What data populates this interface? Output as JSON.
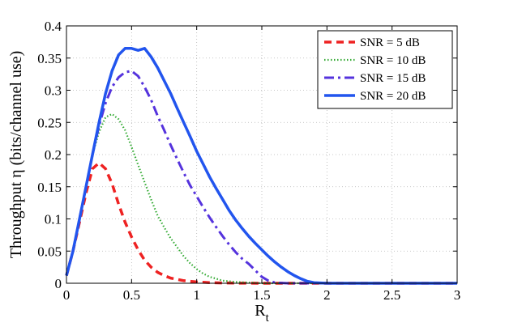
{
  "chart_data": {
    "type": "line",
    "title": "",
    "xlabel": "R",
    "xlabel_subscript": "t",
    "ylabel": "Throughput η (bits/channel use)",
    "xlim": [
      0,
      3
    ],
    "ylim": [
      0,
      0.4
    ],
    "x_ticks": [
      0,
      0.5,
      1,
      1.5,
      2,
      2.5,
      3
    ],
    "x_tick_labels": [
      "0",
      "0.5",
      "1",
      "1.5",
      "2",
      "2.5",
      "3"
    ],
    "y_ticks": [
      0,
      0.05,
      0.1,
      0.15,
      0.2,
      0.25,
      0.3,
      0.35,
      0.4
    ],
    "y_tick_labels": [
      "0",
      "0.05",
      "0.1",
      "0.15",
      "0.2",
      "0.25",
      "0.3",
      "0.35",
      "0.4"
    ],
    "grid": true,
    "legend_position": "top-right",
    "series": [
      {
        "name": "SNR = 5 dB",
        "color": "#ee2222",
        "style": "dashed",
        "x": [
          0,
          0.05,
          0.1,
          0.15,
          0.2,
          0.25,
          0.3,
          0.35,
          0.4,
          0.45,
          0.5,
          0.55,
          0.6,
          0.65,
          0.7,
          0.75,
          0.8,
          0.9,
          1.0,
          1.1,
          1.2,
          1.3,
          1.5,
          2.0,
          3.0
        ],
        "y": [
          0.012,
          0.05,
          0.095,
          0.14,
          0.178,
          0.187,
          0.178,
          0.155,
          0.123,
          0.095,
          0.072,
          0.052,
          0.036,
          0.025,
          0.017,
          0.012,
          0.008,
          0.004,
          0.002,
          0.001,
          0.0005,
          0.0002,
          0,
          0,
          0
        ]
      },
      {
        "name": "SNR = 10 dB",
        "color": "#33aa33",
        "style": "dotted",
        "x": [
          0,
          0.05,
          0.1,
          0.15,
          0.2,
          0.25,
          0.3,
          0.35,
          0.4,
          0.45,
          0.5,
          0.55,
          0.6,
          0.65,
          0.7,
          0.75,
          0.8,
          0.85,
          0.9,
          0.95,
          1.0,
          1.05,
          1.1,
          1.15,
          1.2,
          1.3,
          1.4,
          1.5,
          2.0,
          3.0
        ],
        "y": [
          0.012,
          0.05,
          0.1,
          0.15,
          0.2,
          0.235,
          0.258,
          0.263,
          0.255,
          0.238,
          0.212,
          0.184,
          0.157,
          0.13,
          0.105,
          0.087,
          0.07,
          0.056,
          0.042,
          0.031,
          0.022,
          0.015,
          0.01,
          0.007,
          0.004,
          0.002,
          0.001,
          0,
          0,
          0
        ]
      },
      {
        "name": "SNR = 15 dB",
        "color": "#5533dd",
        "style": "dashdot",
        "x": [
          0,
          0.05,
          0.1,
          0.15,
          0.2,
          0.25,
          0.3,
          0.35,
          0.4,
          0.45,
          0.5,
          0.55,
          0.6,
          0.65,
          0.7,
          0.75,
          0.8,
          0.85,
          0.9,
          0.95,
          1.0,
          1.05,
          1.1,
          1.15,
          1.2,
          1.25,
          1.3,
          1.35,
          1.4,
          1.45,
          1.5,
          1.55,
          1.6,
          1.7,
          2.0,
          3.0
        ],
        "y": [
          0.012,
          0.05,
          0.1,
          0.15,
          0.2,
          0.245,
          0.28,
          0.305,
          0.32,
          0.328,
          0.33,
          0.322,
          0.305,
          0.285,
          0.26,
          0.238,
          0.215,
          0.193,
          0.172,
          0.152,
          0.135,
          0.118,
          0.102,
          0.087,
          0.073,
          0.06,
          0.048,
          0.038,
          0.03,
          0.02,
          0.01,
          0.004,
          0.001,
          0,
          0,
          0
        ]
      },
      {
        "name": "SNR = 20 dB",
        "color": "#2255ee",
        "style": "solid",
        "x": [
          0,
          0.05,
          0.1,
          0.15,
          0.2,
          0.25,
          0.3,
          0.35,
          0.4,
          0.45,
          0.5,
          0.55,
          0.6,
          0.65,
          0.7,
          0.75,
          0.8,
          0.85,
          0.9,
          0.95,
          1.0,
          1.05,
          1.1,
          1.15,
          1.2,
          1.25,
          1.3,
          1.35,
          1.4,
          1.45,
          1.5,
          1.55,
          1.6,
          1.65,
          1.7,
          1.75,
          1.8,
          1.85,
          1.9,
          2.0,
          3.0
        ],
        "y": [
          0.012,
          0.05,
          0.1,
          0.15,
          0.2,
          0.25,
          0.295,
          0.33,
          0.355,
          0.365,
          0.365,
          0.362,
          0.365,
          0.352,
          0.335,
          0.315,
          0.295,
          0.272,
          0.25,
          0.228,
          0.205,
          0.185,
          0.165,
          0.147,
          0.13,
          0.113,
          0.098,
          0.085,
          0.073,
          0.062,
          0.052,
          0.042,
          0.033,
          0.025,
          0.018,
          0.012,
          0.007,
          0.003,
          0.001,
          0,
          0
        ]
      }
    ]
  }
}
